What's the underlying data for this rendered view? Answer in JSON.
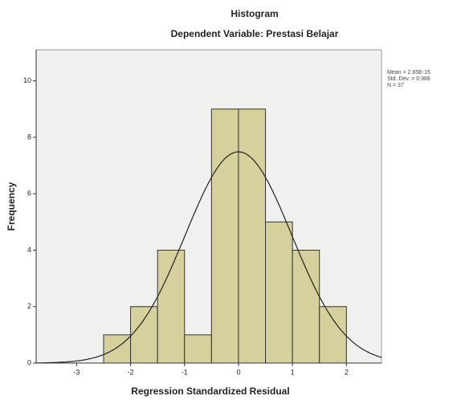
{
  "chart_data": {
    "type": "histogram",
    "title": "Histogram",
    "subtitle": "Dependent Variable: Prestasi Belajar",
    "x_label": "Regression Standardized Residual",
    "y_label": "Frequency",
    "bins": [
      -2.5,
      -2,
      -1.5,
      -1,
      -0.5,
      0,
      0.5,
      1,
      1.5,
      2
    ],
    "counts": [
      1,
      2,
      4,
      1,
      9,
      9,
      5,
      4,
      2
    ],
    "color": "#d6d09c",
    "xlim": [
      -3.75,
      2.65
    ],
    "xticks": [
      -3,
      -2,
      -1,
      0,
      1,
      2
    ],
    "ylim": [
      0,
      11.1
    ],
    "yticks": [
      0,
      2,
      4,
      6,
      8,
      10
    ],
    "annotations": [
      "Mean = 2.65E-15",
      "Std. Dev. = 0.986",
      "N = 37"
    ],
    "normal_curve": {
      "mean": 2.65e-15,
      "std": 0.986,
      "n": 37
    }
  }
}
